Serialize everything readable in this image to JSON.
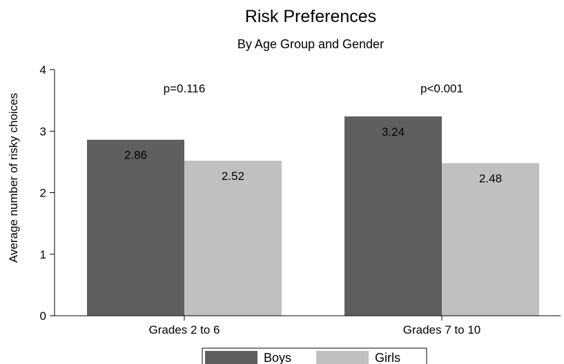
{
  "chart_data": {
    "type": "bar",
    "title": "Risk Preferences",
    "subtitle": "By Age Group and Gender",
    "xlabel": "",
    "ylabel": "Average number of risky choices",
    "ylim": [
      0,
      4
    ],
    "yticks": [
      "0",
      "1",
      "2",
      "3",
      "4"
    ],
    "categories": [
      "Grades 2 to 6",
      "Grades 7 to 10"
    ],
    "series": [
      {
        "name": "Boys",
        "values": [
          2.86,
          3.24
        ],
        "labels": [
          "2.86",
          "3.24"
        ],
        "color": "#5f5f5f"
      },
      {
        "name": "Girls",
        "values": [
          2.52,
          2.48
        ],
        "labels": [
          "2.52",
          "2.48"
        ],
        "color": "#c0c0c0"
      }
    ],
    "annotations": [
      "p=0.116",
      "p<0.001"
    ],
    "grid": false,
    "legend_position": "bottom"
  }
}
